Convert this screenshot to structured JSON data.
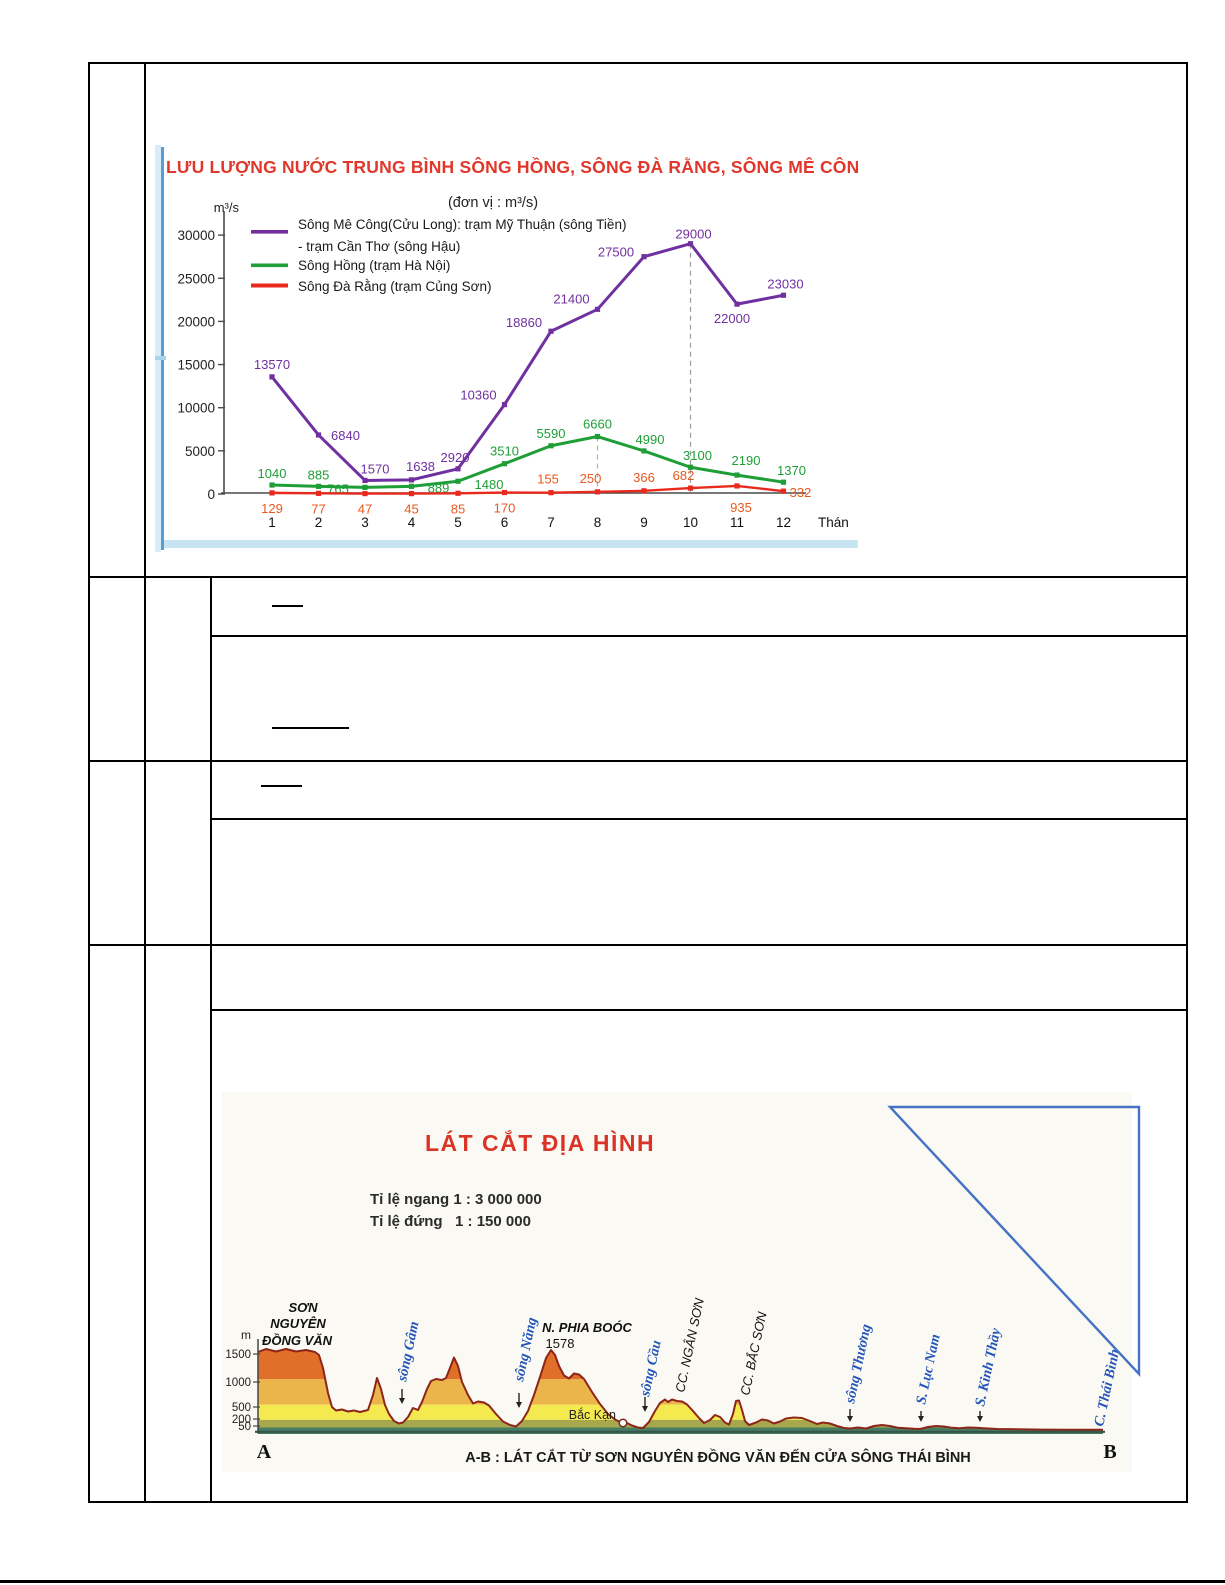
{
  "chart_data": [
    {
      "type": "line",
      "title": "LƯU LƯỢNG NƯỚC TRUNG BÌNH SÔNG HỒNG, SÔNG ĐÀ RẰNG, SÔNG MÊ CÔNG",
      "subtitle": "(đơn vị : m³/s)",
      "ylabel": "m³/s",
      "xlabel": "Thán",
      "x": [
        1,
        2,
        3,
        4,
        5,
        6,
        7,
        8,
        9,
        10,
        11,
        12
      ],
      "y_ticks": [
        0,
        5000,
        10000,
        15000,
        20000,
        25000,
        30000
      ],
      "ylim": [
        0,
        32000
      ],
      "grid": false,
      "legend_position": "top-left-inside",
      "series": [
        {
          "name": "Sông Mê Công(Cửu Long): trạm Mỹ Thuận (sông Tiền)",
          "name_line2": "- trạm Cần Thơ (sông Hậu)",
          "color": "#7030A0",
          "label_color": "#7030A0",
          "values": [
            13570,
            6840,
            1570,
            1638,
            2920,
            10360,
            18860,
            21400,
            27500,
            29000,
            22000,
            23030
          ],
          "label_offsets": [
            [
              0,
              -8
            ],
            [
              27,
              5
            ],
            [
              10,
              -7
            ],
            [
              9,
              -9
            ],
            [
              -3,
              -7
            ],
            [
              -26,
              -5
            ],
            [
              -27,
              -4
            ],
            [
              -26,
              -6
            ],
            [
              -28,
              0
            ],
            [
              3,
              -5
            ],
            [
              -5,
              19
            ],
            [
              2,
              -7
            ]
          ]
        },
        {
          "name": "Sông Hồng (trạm Hà Nội)",
          "color": "#1F9E38",
          "label_color": "#1F9E38",
          "values": [
            1040,
            885,
            765,
            889,
            1480,
            3510,
            5590,
            6660,
            4990,
            3100,
            2190,
            1370
          ],
          "label_offsets": [
            [
              0,
              -7
            ],
            [
              0,
              -7
            ],
            [
              -27,
              6
            ],
            [
              27,
              6
            ],
            [
              31,
              8
            ],
            [
              0,
              -8
            ],
            [
              0,
              -8
            ],
            [
              0,
              -8
            ],
            [
              6,
              -7
            ],
            [
              7,
              -7
            ],
            [
              9,
              -10
            ],
            [
              8,
              -7
            ]
          ]
        },
        {
          "name": "Sông Đà Rằng (trạm Củng Sơn)",
          "color": "#E8291C",
          "label_color": "#E8581F",
          "values": [
            129,
            77,
            47,
            45,
            85,
            170,
            155,
            250,
            366,
            682,
            935,
            332
          ],
          "label_offsets": [
            [
              0,
              20
            ],
            [
              0,
              20
            ],
            [
              0,
              20
            ],
            [
              0,
              20
            ],
            [
              0,
              20
            ],
            [
              0,
              20
            ],
            [
              -3,
              -9
            ],
            [
              -7,
              -9
            ],
            [
              0,
              -9
            ],
            [
              -7,
              -8
            ],
            [
              4,
              26
            ],
            [
              17,
              6
            ]
          ]
        }
      ],
      "guides": [
        {
          "month": 8,
          "color": "#8FCB8F"
        },
        {
          "month": 10,
          "color": "#9C9C9C"
        }
      ]
    },
    {
      "type": "area",
      "kind": "topographic-cross-section",
      "title": "LÁT CẮT ĐỊA HÌNH",
      "scale_horizontal": "Tỉ lệ ngang 1 : 3 000 000",
      "scale_vertical": "Tỉ lệ đứng   1 : 150 000",
      "ylabel": "m",
      "elevation_ticks": [
        1500,
        1000,
        500,
        200,
        50
      ],
      "endpoint_a": "A",
      "endpoint_b": "B",
      "caption": "A-B : LÁT CẮT TỪ SƠN NGUYÊN ĐỒNG VĂN ĐẾN CỬA SÔNG THÁI BÌNH",
      "plateau_lines": [
        "SƠN",
        "NGUYÊN",
        "ĐỒNG VĂN"
      ],
      "peak_name": "N. PHIA BOÓC",
      "peak_elevation": "1578",
      "town": "Bắc Kạn",
      "ranges": [
        "CC. NGÂN SƠN",
        "CC. BẮC SƠN"
      ],
      "rivers": [
        "sông Gâm",
        "sông Năng",
        "sông Cầu",
        "sông Thương",
        "S. Lục Nam",
        "S. Kinh Thầy",
        "C. Thái Bình"
      ],
      "profile_features": [
        {
          "label": "Sơn Nguyên Đồng Văn",
          "approx_elevation_m": 1550
        },
        {
          "label": "N. Phia Boóc",
          "approx_elevation_m": 1578
        },
        {
          "label": "CC. Ngân Sơn",
          "approx_elevation_m": 650
        },
        {
          "label": "CC. Bắc Sơn",
          "approx_elevation_m": 600
        }
      ],
      "band_colors": {
        "above_1000": "#E06F2A",
        "b500_1000": "#EBB54B",
        "b200_500": "#F4EA4F",
        "b50_200": "#A7A74D",
        "b0_50": "#467D62"
      },
      "river_label_color": "#2456B8",
      "title_color": "#D93425",
      "triangle_color": "#4472C4"
    }
  ]
}
